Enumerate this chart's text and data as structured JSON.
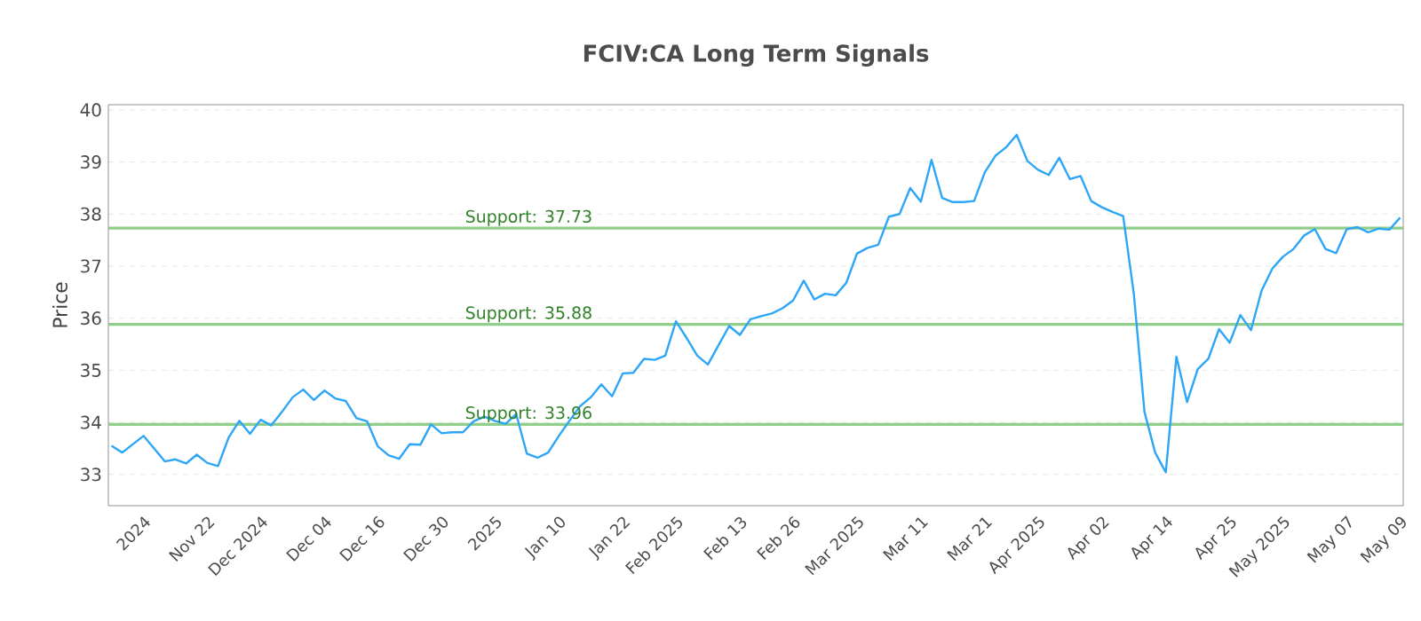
{
  "chart_data": {
    "type": "line",
    "title": "FCIV:CA Long Term Signals",
    "ylabel": "Price",
    "categories": [
      null,
      null,
      null,
      "2024",
      null,
      null,
      null,
      null,
      null,
      "Nov 22",
      null,
      null,
      null,
      null,
      "Dec 2024",
      null,
      null,
      null,
      null,
      null,
      "Dec 04",
      null,
      null,
      null,
      null,
      "Dec 16",
      null,
      null,
      null,
      null,
      null,
      "Dec 30",
      null,
      null,
      null,
      null,
      "2025",
      null,
      null,
      null,
      null,
      null,
      "Jan 10",
      null,
      null,
      null,
      null,
      null,
      "Jan 22",
      null,
      null,
      null,
      null,
      "Feb 2025",
      null,
      null,
      null,
      null,
      null,
      "Feb 13",
      null,
      null,
      null,
      null,
      "Feb 26",
      null,
      null,
      null,
      null,
      null,
      "Mar 2025",
      null,
      null,
      null,
      null,
      null,
      "Mar 11",
      null,
      null,
      null,
      null,
      null,
      "Mar 21",
      null,
      null,
      null,
      null,
      "Apr 2025",
      null,
      null,
      null,
      null,
      null,
      "Apr 02",
      null,
      null,
      null,
      null,
      null,
      "Apr 14",
      null,
      null,
      null,
      null,
      null,
      "Apr 25",
      null,
      null,
      null,
      null,
      "May 2025",
      null,
      null,
      null,
      null,
      null,
      "May 07",
      null,
      null,
      null,
      null,
      "May 09"
    ],
    "series": [
      {
        "color": "#2ea6f8",
        "values": [
          33.55,
          33.42,
          33.58,
          33.74,
          33.5,
          33.25,
          33.29,
          33.21,
          33.38,
          33.22,
          33.16,
          33.71,
          34.03,
          33.78,
          34.05,
          33.94,
          34.2,
          34.48,
          34.63,
          34.43,
          34.61,
          34.46,
          34.41,
          34.08,
          34.02,
          33.54,
          33.37,
          33.3,
          33.58,
          33.57,
          33.96,
          33.79,
          33.81,
          33.81,
          34.02,
          34.11,
          34.03,
          33.97,
          34.16,
          33.4,
          33.32,
          33.42,
          33.74,
          34.03,
          34.31,
          34.48,
          34.73,
          34.5,
          34.94,
          34.95,
          35.22,
          35.2,
          35.28,
          35.94,
          35.62,
          35.28,
          35.11,
          35.48,
          35.85,
          35.68,
          35.98,
          36.04,
          36.09,
          36.19,
          36.34,
          36.72,
          36.36,
          36.47,
          36.44,
          36.68,
          37.24,
          37.35,
          37.41,
          37.95,
          38.0,
          38.5,
          38.24,
          39.04,
          38.31,
          38.23,
          38.23,
          38.25,
          38.8,
          39.12,
          39.28,
          39.52,
          39.02,
          38.85,
          38.75,
          39.08,
          38.67,
          38.73,
          38.25,
          38.13,
          38.04,
          37.96,
          36.47,
          34.2,
          33.42,
          33.04,
          35.26,
          34.39,
          35.02,
          35.22,
          35.79,
          35.53,
          36.06,
          35.77,
          36.53,
          36.95,
          37.18,
          37.33,
          37.59,
          37.71,
          37.33,
          37.25,
          37.71,
          37.75,
          37.65,
          37.72,
          37.7,
          37.93
        ]
      }
    ],
    "ylim": [
      32.4,
      40.1
    ],
    "yticks": [
      33,
      34,
      35,
      36,
      37,
      38,
      39,
      40
    ],
    "grid": "y",
    "line_style": "solid",
    "marker": "none",
    "ref_lines": [
      {
        "axis": "y",
        "value": 37.73,
        "label": "Support: 37.73",
        "color": "#8fcf8a"
      },
      {
        "axis": "y",
        "value": 35.88,
        "label": "Support: 35.88",
        "color": "#8fcf8a"
      },
      {
        "axis": "y",
        "value": 33.96,
        "label": "Support: 33.96",
        "color": "#8fcf8a"
      }
    ]
  }
}
